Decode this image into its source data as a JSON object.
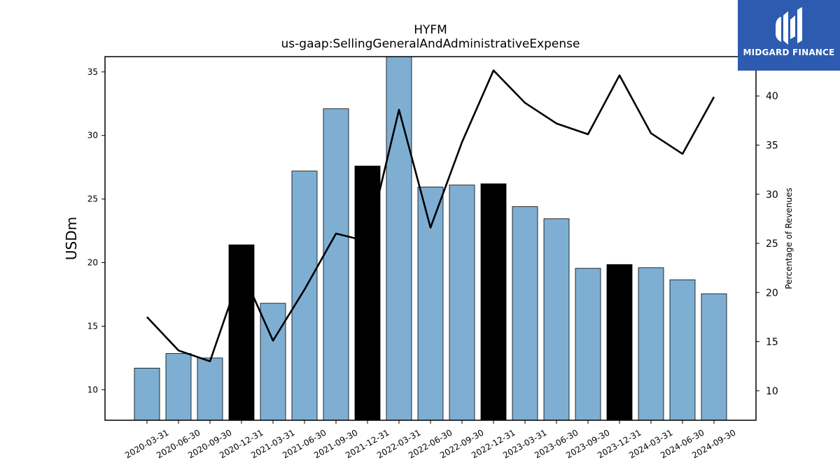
{
  "chart_data": {
    "type": "bar",
    "title": "HYFM",
    "subtitle": "us-gaap:SellingGeneralAndAdministrativeExpense",
    "ylabel": "USDm",
    "y2label": "Percentage of Revenues",
    "ylim": [
      7.6,
      36.2
    ],
    "y2lim": [
      7,
      44
    ],
    "yticks": [
      10,
      15,
      20,
      25,
      30,
      35
    ],
    "y2ticks": [
      10,
      15,
      20,
      25,
      30,
      35,
      40
    ],
    "categories": [
      "2020-03-31",
      "2020-06-30",
      "2020-09-30",
      "2020-12-31",
      "2021-03-31",
      "2021-06-30",
      "2021-09-30",
      "2021-12-31",
      "2022-03-31",
      "2022-06-30",
      "2022-09-30",
      "2022-12-31",
      "2023-03-31",
      "2023-06-30",
      "2023-09-30",
      "2023-12-31",
      "2024-03-31",
      "2024-06-30",
      "2024-09-30"
    ],
    "series": [
      {
        "kind": "bar",
        "axis": "left",
        "values": [
          11.7,
          12.85,
          12.5,
          21.4,
          16.8,
          27.2,
          32.1,
          27.6,
          36.3,
          25.95,
          26.1,
          26.2,
          24.4,
          23.45,
          19.55,
          19.85,
          19.6,
          18.65,
          17.55
        ],
        "highlight": [
          false,
          false,
          false,
          true,
          false,
          false,
          false,
          true,
          false,
          false,
          false,
          true,
          false,
          false,
          false,
          true,
          false,
          false,
          false
        ]
      },
      {
        "kind": "line",
        "axis": "right",
        "values": [
          17.5,
          14.1,
          13.0,
          22.3,
          15.1,
          20.3,
          26.0,
          25.2,
          38.6,
          26.6,
          35.3,
          42.6,
          39.3,
          37.2,
          36.1,
          42.1,
          36.2,
          34.1,
          39.9
        ]
      }
    ],
    "colors": {
      "bar": "#7eafd3",
      "bar_highlight": "#000000",
      "line": "#000000"
    },
    "grid": false,
    "legend": "none"
  },
  "logo": {
    "text": "MIDGARD FINANCE",
    "background": "#2c5bb0"
  }
}
